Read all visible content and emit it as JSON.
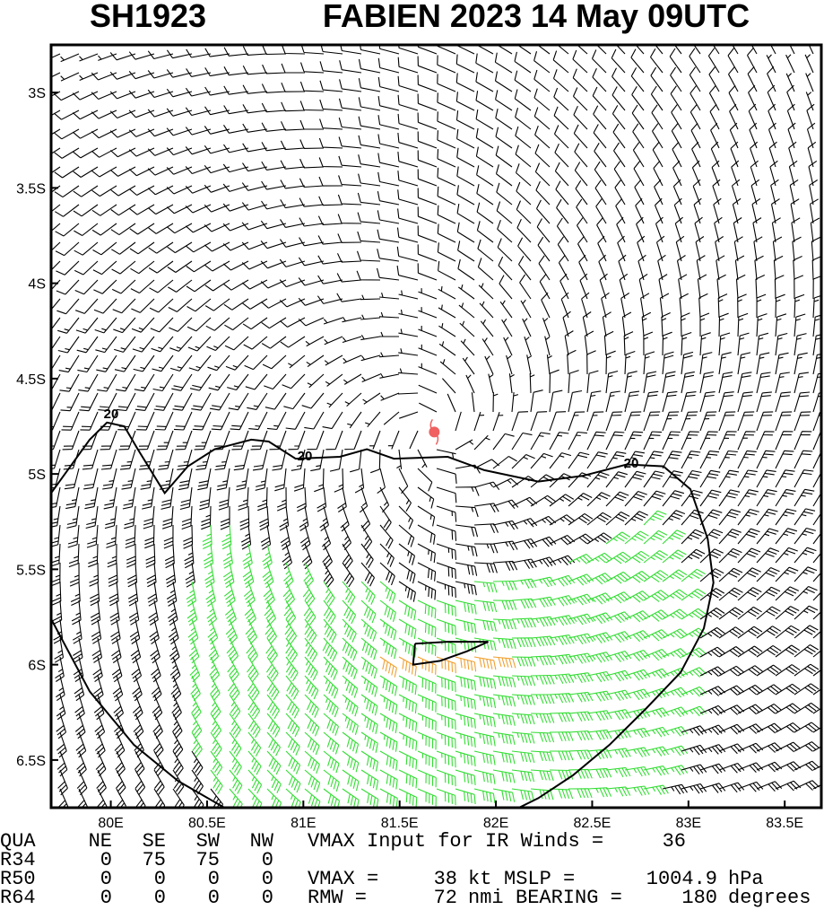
{
  "chart_data": {
    "type": "wind-barb",
    "title": "SH1923",
    "subtitle": "FABIEN 2023 14 May 09UTC",
    "xlim": [
      79.69,
      83.69
    ],
    "ylim": [
      -6.75,
      -2.75
    ],
    "xticks": [
      {
        "value": 80,
        "label": "80E"
      },
      {
        "value": 80.5,
        "label": "80.5E"
      },
      {
        "value": 81,
        "label": "81E"
      },
      {
        "value": 81.5,
        "label": "81.5E"
      },
      {
        "value": 82,
        "label": "82E"
      },
      {
        "value": 82.5,
        "label": "82.5E"
      },
      {
        "value": 83,
        "label": "83E"
      },
      {
        "value": 83.5,
        "label": "83.5E"
      }
    ],
    "yticks": [
      {
        "value": -3,
        "label": "3S"
      },
      {
        "value": -3.5,
        "label": "3.5S"
      },
      {
        "value": -4,
        "label": "4S"
      },
      {
        "value": -4.5,
        "label": "4.5S"
      },
      {
        "value": -5,
        "label": "5S"
      },
      {
        "value": -5.5,
        "label": "5.5S"
      },
      {
        "value": -6,
        "label": "6S"
      },
      {
        "value": -6.5,
        "label": "6.5S"
      }
    ],
    "center": {
      "lon": 81.68,
      "lat": -4.78,
      "color": "#f06060"
    },
    "barb_colors": [
      "#000000",
      "#33dd33",
      "#f0a030"
    ],
    "contours": [
      {
        "level": 20,
        "lon": [
          79.69,
          79.89,
          79.98,
          80.07,
          80.14,
          80.28,
          80.4,
          80.54,
          80.73,
          80.82,
          80.96,
          81.19,
          81.33,
          81.47,
          81.75,
          81.94,
          82.22,
          82.45,
          82.68,
          82.87,
          83.01,
          83.1,
          83.13,
          83.08,
          82.96,
          82.78,
          82.59,
          82.4,
          82.22,
          82.12,
          null,
          79.69,
          79.89,
          80.12,
          80.35,
          80.59
        ],
        "lat": [
          -5.1,
          -4.82,
          -4.73,
          -4.75,
          -4.87,
          -5.1,
          -4.96,
          -4.87,
          -4.82,
          -4.83,
          -4.92,
          -4.91,
          -4.87,
          -4.92,
          -4.91,
          -4.98,
          -5.04,
          -5.01,
          -4.95,
          -4.96,
          -5.08,
          -5.34,
          -5.57,
          -5.81,
          -6.04,
          -6.23,
          -6.42,
          -6.58,
          -6.7,
          -6.75,
          null,
          -5.76,
          -6.14,
          -6.42,
          -6.61,
          -6.75
        ]
      },
      {
        "lon": [
          81.58,
          81.75,
          81.96,
          81.85,
          81.71,
          81.57,
          81.58
        ],
        "lat": [
          -5.89,
          -5.88,
          -5.88,
          -5.93,
          -5.98,
          -6.0,
          -5.89
        ]
      }
    ],
    "table": {
      "headers": [
        "QUA",
        "NE",
        "SE",
        "SW",
        "NW"
      ],
      "rows": [
        {
          "label": "R34",
          "values": [
            0,
            75,
            75,
            0
          ]
        },
        {
          "label": "R50",
          "values": [
            0,
            0,
            0,
            0
          ]
        },
        {
          "label": "R64",
          "values": [
            0,
            0,
            0,
            0
          ]
        }
      ]
    },
    "vmax_input": {
      "label": "VMAX Input for IR Winds =",
      "value": 36
    },
    "vmax": {
      "label": "VMAX =",
      "value": 38,
      "unit": "kt"
    },
    "mslp": {
      "label": "MSLP =",
      "value": 1004.9,
      "unit": "hPa"
    },
    "rmw": {
      "label": "RMW =",
      "value": 72,
      "unit": "nmi"
    },
    "bearing": {
      "label": "BEARING =",
      "value": 180,
      "unit": "degrees"
    }
  }
}
